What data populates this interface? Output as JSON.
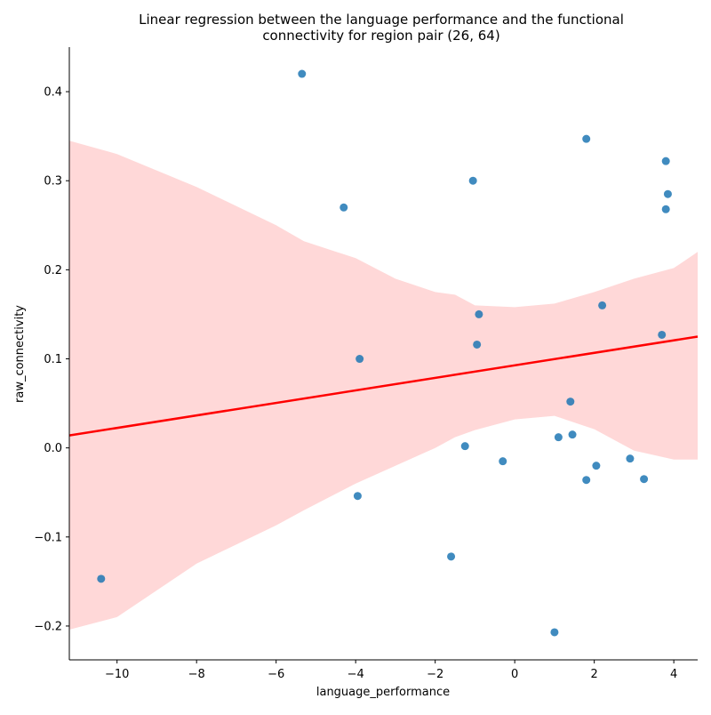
{
  "chart_data": {
    "type": "scatter",
    "title_lines": [
      "Linear regression between the language performance and the functional",
      "connectivity for region pair (26, 64)"
    ],
    "xlabel": "language_performance",
    "ylabel": "raw_connectivity",
    "xlim": [
      -11.2,
      4.6
    ],
    "ylim": [
      -0.238,
      0.45
    ],
    "xticks": [
      {
        "value": -10,
        "label": "−10"
      },
      {
        "value": -8,
        "label": "−8"
      },
      {
        "value": -6,
        "label": "−6"
      },
      {
        "value": -4,
        "label": "−4"
      },
      {
        "value": -2,
        "label": "−2"
      },
      {
        "value": 0,
        "label": "0"
      },
      {
        "value": 2,
        "label": "2"
      },
      {
        "value": 4,
        "label": "4"
      }
    ],
    "yticks": [
      {
        "value": -0.2,
        "label": "−0.2"
      },
      {
        "value": -0.1,
        "label": "−0.1"
      },
      {
        "value": 0.0,
        "label": "0.0"
      },
      {
        "value": 0.1,
        "label": "0.1"
      },
      {
        "value": 0.2,
        "label": "0.2"
      },
      {
        "value": 0.3,
        "label": "0.3"
      },
      {
        "value": 0.4,
        "label": "0.4"
      }
    ],
    "points": [
      {
        "x": -10.4,
        "y": -0.147
      },
      {
        "x": -5.35,
        "y": 0.42
      },
      {
        "x": -4.3,
        "y": 0.27
      },
      {
        "x": -3.9,
        "y": 0.1
      },
      {
        "x": -3.95,
        "y": -0.054
      },
      {
        "x": -1.6,
        "y": -0.122
      },
      {
        "x": -1.25,
        "y": 0.002
      },
      {
        "x": -1.05,
        "y": 0.3
      },
      {
        "x": -0.9,
        "y": 0.15
      },
      {
        "x": -0.95,
        "y": 0.116
      },
      {
        "x": -0.3,
        "y": -0.015
      },
      {
        "x": 1.0,
        "y": -0.207
      },
      {
        "x": 1.1,
        "y": 0.012
      },
      {
        "x": 1.4,
        "y": 0.052
      },
      {
        "x": 1.45,
        "y": 0.015
      },
      {
        "x": 1.8,
        "y": -0.036
      },
      {
        "x": 1.8,
        "y": 0.347
      },
      {
        "x": 2.05,
        "y": -0.02
      },
      {
        "x": 2.2,
        "y": 0.16
      },
      {
        "x": 2.9,
        "y": -0.012
      },
      {
        "x": 3.25,
        "y": -0.035
      },
      {
        "x": 3.7,
        "y": 0.127
      },
      {
        "x": 3.8,
        "y": 0.268
      },
      {
        "x": 3.8,
        "y": 0.322
      },
      {
        "x": 3.85,
        "y": 0.285
      }
    ],
    "regression_line": {
      "x": [
        -11.2,
        4.6
      ],
      "y": [
        0.014,
        0.125
      ]
    },
    "confidence_band": {
      "x": [
        -11.2,
        -10,
        -8,
        -6,
        -5.3,
        -4,
        -3,
        -2,
        -1.5,
        -1,
        0,
        1,
        2,
        3,
        4,
        4.6
      ],
      "upper": [
        0.345,
        0.33,
        0.293,
        0.25,
        0.232,
        0.213,
        0.19,
        0.175,
        0.172,
        0.16,
        0.158,
        0.162,
        0.175,
        0.19,
        0.202,
        0.22
      ],
      "lower": [
        -0.204,
        -0.19,
        -0.13,
        -0.087,
        -0.07,
        -0.04,
        -0.02,
        0.0,
        0.012,
        0.02,
        0.032,
        0.036,
        0.021,
        -0.003,
        -0.013,
        -0.013
      ]
    },
    "colors": {
      "points": "#1f77b4",
      "line": "#ff0000",
      "band": "#ffd8d8"
    },
    "grid": false,
    "legend": "none"
  }
}
